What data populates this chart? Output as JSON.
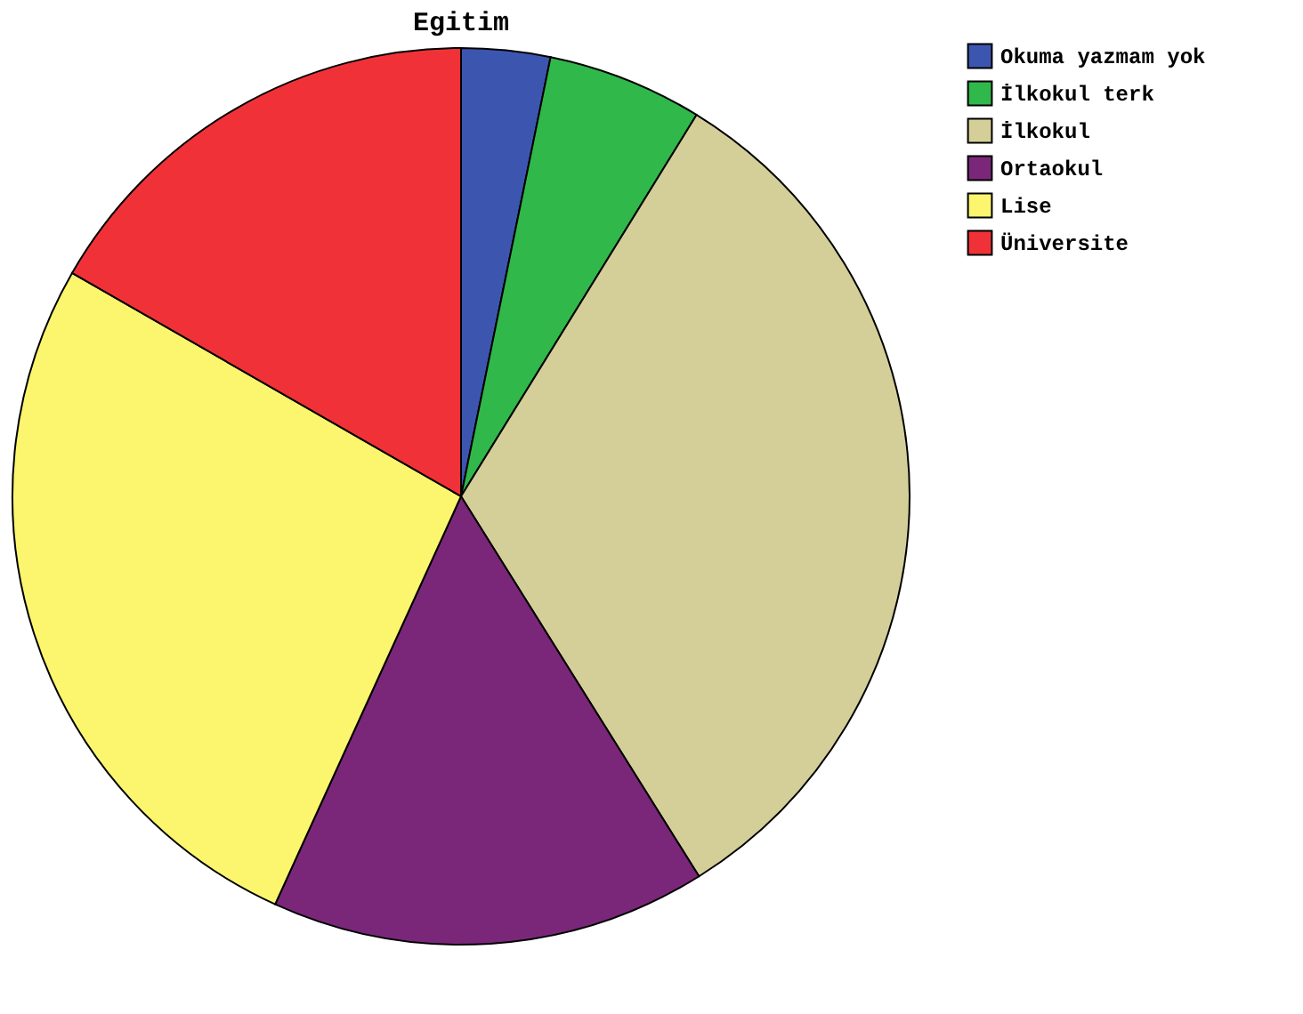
{
  "chart_data": {
    "type": "pie",
    "title": "Egitim",
    "categories": [
      "Okuma yazmam yok",
      "İlkokul terk",
      "İlkokul",
      "Ortaokul",
      "Lise",
      "Üniversite"
    ],
    "values": [
      3.2,
      5.6,
      32.3,
      15.7,
      26.5,
      16.7
    ],
    "colors": [
      "#3c56b0",
      "#30b84a",
      "#d4cf98",
      "#7a2779",
      "#fbf66e",
      "#f03238"
    ],
    "legend": "top right"
  }
}
